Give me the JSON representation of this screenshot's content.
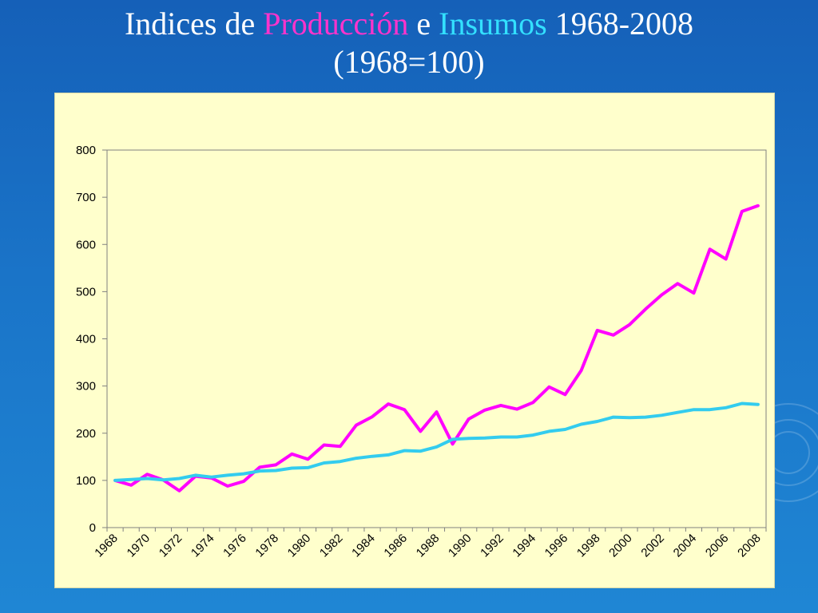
{
  "slide": {
    "title_part1": "Indices de ",
    "title_part2": "Producción",
    "title_part3": " e ",
    "title_part4": "Insumos",
    "title_part5": " 1968-2008",
    "title_line2": "(1968=100)"
  },
  "colors": {
    "background": "#1a6fc4",
    "chart_bg": "#ffffcc",
    "produccion": "#ff00ff",
    "insumos": "#33ccee",
    "title_white": "#ffffff",
    "title_pink": "#ff33cc",
    "title_cyan": "#33e0ff"
  },
  "chart_data": {
    "type": "line",
    "title": "",
    "xlabel": "",
    "ylabel": "",
    "ylim": [
      0,
      800
    ],
    "yticks": [
      0,
      100,
      200,
      300,
      400,
      500,
      600,
      700,
      800
    ],
    "x": [
      1968,
      1969,
      1970,
      1971,
      1972,
      1973,
      1974,
      1975,
      1976,
      1977,
      1978,
      1979,
      1980,
      1981,
      1982,
      1983,
      1984,
      1985,
      1986,
      1987,
      1988,
      1989,
      1990,
      1991,
      1992,
      1993,
      1994,
      1995,
      1996,
      1997,
      1998,
      1999,
      2000,
      2001,
      2002,
      2003,
      2004,
      2005,
      2006,
      2007,
      2008
    ],
    "xtick_labels": [
      "1968",
      "1970",
      "1972",
      "1974",
      "1976",
      "1978",
      "1980",
      "1982",
      "1984",
      "1986",
      "1988",
      "1990",
      "1992",
      "1994",
      "1996",
      "1998",
      "2000",
      "2002",
      "2004",
      "2006",
      "2008"
    ],
    "grid": false,
    "legend": "none",
    "series": [
      {
        "values": [
          100,
          90,
          113,
          101,
          78,
          109,
          105,
          88,
          98,
          128,
          133,
          156,
          145,
          175,
          172,
          217,
          235,
          262,
          250,
          204,
          245,
          177,
          230,
          249,
          259,
          251,
          265,
          298,
          282,
          333,
          418,
          408,
          430,
          463,
          493,
          517,
          497,
          590,
          569,
          670,
          682
        ],
        "color": "#ff00ff"
      },
      {
        "values": [
          100,
          102,
          104,
          101,
          104,
          111,
          107,
          111,
          114,
          120,
          121,
          126,
          127,
          137,
          140,
          147,
          151,
          154,
          163,
          162,
          171,
          187,
          189,
          190,
          192,
          192,
          196,
          204,
          208,
          219,
          225,
          234,
          233,
          234,
          238,
          244,
          250,
          250,
          254,
          263,
          261
        ],
        "color": "#33ccee"
      }
    ]
  }
}
